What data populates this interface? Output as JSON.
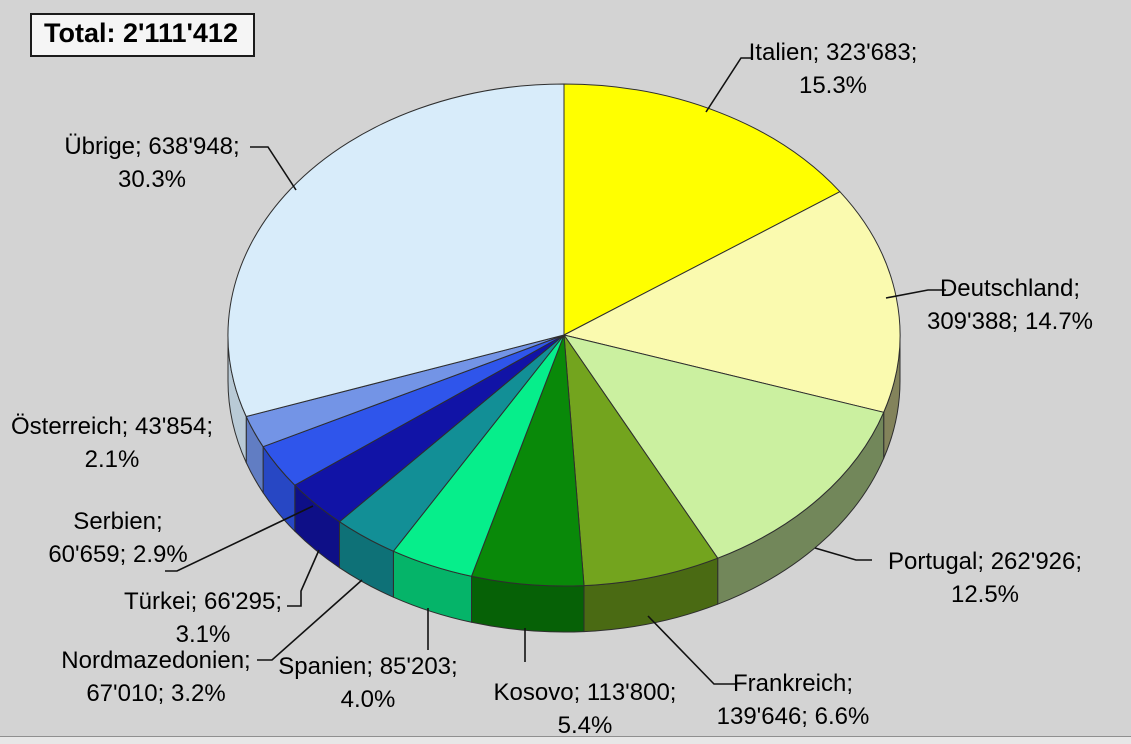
{
  "background_color": "#D3D3D3",
  "chart_data": {
    "type": "pie",
    "style": "3d-exploded-none",
    "title": "Total: 2'111'412",
    "total": 2111412,
    "start_angle_deg": -90,
    "direction": "clockwise",
    "legend": "none",
    "labels_format": "name; value; percent",
    "slices": [
      {
        "key": "italien",
        "label": "Italien",
        "value": 323683,
        "pct": 15.3,
        "color": "#FFFF00",
        "label_line1": "Italien; 323'683;",
        "label_line2": "15.3%"
      },
      {
        "key": "deutschland",
        "label": "Deutschland",
        "value": 309388,
        "pct": 14.7,
        "color": "#FAFAAF",
        "label_line1": "Deutschland;",
        "label_line2": "309'388; 14.7%"
      },
      {
        "key": "portugal",
        "label": "Portugal",
        "value": 262926,
        "pct": 12.5,
        "color": "#CBF0A0",
        "label_line1": "Portugal; 262'926;",
        "label_line2": "12.5%"
      },
      {
        "key": "frankreich",
        "label": "Frankreich",
        "value": 139646,
        "pct": 6.6,
        "color": "#73A41E",
        "label_line1": "Frankreich;",
        "label_line2": "139'646; 6.6%"
      },
      {
        "key": "kosovo",
        "label": "Kosovo",
        "value": 113800,
        "pct": 5.4,
        "color": "#098909",
        "label_line1": "Kosovo; 113'800;",
        "label_line2": "5.4%"
      },
      {
        "key": "spanien",
        "label": "Spanien",
        "value": 85203,
        "pct": 4.0,
        "color": "#06EE8B",
        "label_line1": "Spanien; 85'203;",
        "label_line2": "4.0%"
      },
      {
        "key": "nordmazedonien",
        "label": "Nordmazedonien",
        "value": 67010,
        "pct": 3.2,
        "color": "#128F96",
        "label_line1": "Nordmazedonien;",
        "label_line2": "67'010; 3.2%"
      },
      {
        "key": "tuerkei",
        "label": "Türkei",
        "value": 66295,
        "pct": 3.1,
        "color": "#1113A6",
        "label_line1": "Türkei; 66'295;",
        "label_line2": "3.1%"
      },
      {
        "key": "serbien",
        "label": "Serbien",
        "value": 60659,
        "pct": 2.9,
        "color": "#2F55EB",
        "label_line1": "Serbien;",
        "label_line2": "60'659; 2.9%"
      },
      {
        "key": "oesterreich",
        "label": "Österreich",
        "value": 43854,
        "pct": 2.1,
        "color": "#7394E6",
        "label_line1": "Österreich; 43'854;",
        "label_line2": "2.1%"
      },
      {
        "key": "uebrige",
        "label": "Übrige",
        "value": 638948,
        "pct": 30.3,
        "color": "#D8ECFA",
        "label_line1": "Übrige; 638'948;",
        "label_line2": "30.3%"
      }
    ]
  }
}
